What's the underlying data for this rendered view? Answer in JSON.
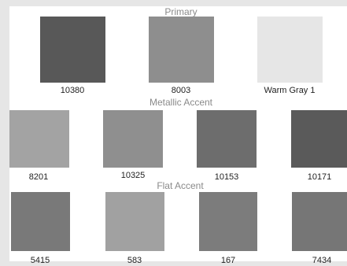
{
  "sections": [
    {
      "title": "Primary",
      "swatches": [
        {
          "label": "10380",
          "color": "#585858"
        },
        {
          "label": "8003",
          "color": "#8e8e8e"
        },
        {
          "label": "Warm Gray 1",
          "color": "#e6e6e6"
        }
      ]
    },
    {
      "title": "Metallic Accent",
      "swatches": [
        {
          "label": "8201",
          "color": "#a3a3a3"
        },
        {
          "label": "10325",
          "color": "#8f8f8f"
        },
        {
          "label": "10153",
          "color": "#6d6d6d"
        },
        {
          "label": "10171",
          "color": "#5a5a5a"
        }
      ]
    },
    {
      "title": "Flat Accent",
      "swatches": [
        {
          "label": "5415",
          "color": "#797979"
        },
        {
          "label": "583",
          "color": "#a1a1a1"
        },
        {
          "label": "167",
          "color": "#7c7c7c"
        },
        {
          "label": "7434",
          "color": "#767676"
        }
      ]
    }
  ]
}
